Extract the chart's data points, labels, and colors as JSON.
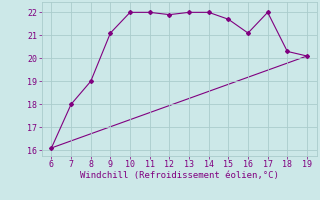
{
  "line1_x": [
    6,
    7,
    8,
    9,
    10,
    11,
    12,
    13,
    14,
    15,
    16,
    17,
    18,
    19
  ],
  "line1_y": [
    16.1,
    18.0,
    19.0,
    21.1,
    22.0,
    22.0,
    21.9,
    22.0,
    22.0,
    21.7,
    21.1,
    22.0,
    20.3,
    20.1
  ],
  "line2_x": [
    6,
    19
  ],
  "line2_y": [
    16.1,
    20.1
  ],
  "color": "#800080",
  "bg_color": "#cce8e8",
  "grid_color": "#aacccc",
  "xlabel": "Windchill (Refroidissement éolien,°C)",
  "xlim": [
    5.5,
    19.5
  ],
  "ylim": [
    15.75,
    22.45
  ],
  "xticks": [
    6,
    7,
    8,
    9,
    10,
    11,
    12,
    13,
    14,
    15,
    16,
    17,
    18,
    19
  ],
  "yticks": [
    16,
    17,
    18,
    19,
    20,
    21,
    22
  ],
  "tick_fontsize": 6,
  "xlabel_fontsize": 6.5,
  "marker": "D",
  "marker_size": 2.0,
  "line_width": 0.8
}
